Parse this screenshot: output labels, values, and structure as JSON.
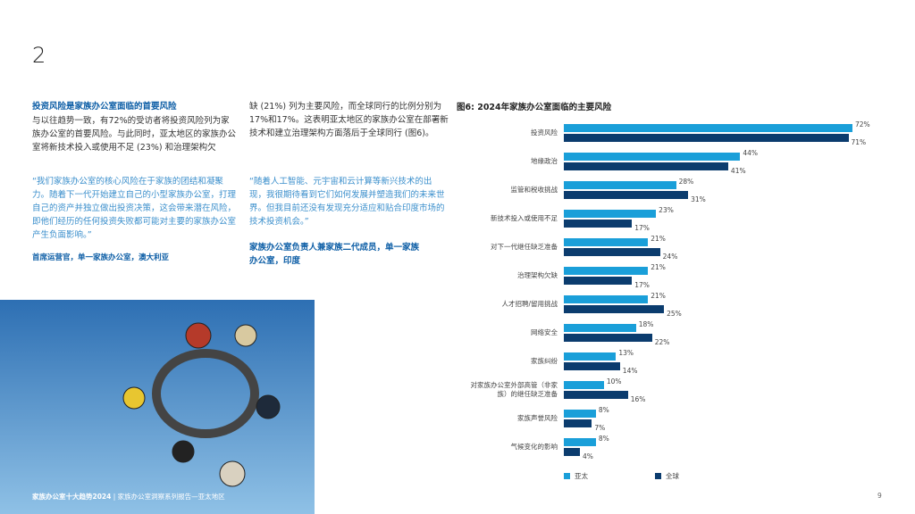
{
  "page_number": "2",
  "left": {
    "heading": "投资风险是家族办公室面临的首要风险",
    "paragraph": "与以往趋势一致，有72%的受访者将投资风险列为家族办公室的首要风险。与此同时，亚太地区的家族办公室将新技术投入或使用不足 (23%) 和治理架构欠",
    "quote": "“我们家族办公室的核心风险在于家族的团结和凝聚力。随着下一代开始建立自己的小型家族办公室，打理自己的资产并独立做出投资决策，这会带来潜在风险，即他们经历的任何投资失败都可能对主要的家族办公室产生负面影响。”",
    "attribution": "首席运营官，单一家族办公室，澳大利亚"
  },
  "middle": {
    "paragraph": "缺 (21%) 列为主要风险，而全球同行的比例分别为17%和17%。这表明亚太地区的家族办公室在部署新技术和建立治理架构方面落后于全球同行 (图6)。",
    "quote": "“随着人工智能、元宇宙和云计算等新兴技术的出现，我很期待看到它们如何发展并塑造我们的未来世界。但我目前还没有发现充分适应和贴合印度市场的技术投资机会。”",
    "attribution": "家族办公室负责人兼家族二代成员，单一家族办公室，印度"
  },
  "chart_data": {
    "type": "hbar",
    "title": "图6: 2024年家族办公室面临的主要风险",
    "categories": [
      "投资风险",
      "地缘政治",
      "监管和税收挑战",
      "新技术投入或使用不足",
      "对下一代继任缺乏准备",
      "治理架构欠缺",
      "人才招聘/留用挑战",
      "网络安全",
      "家族纠纷",
      "对家族办公室外部高管（非家族）的继任缺乏准备",
      "家族声誉风险",
      "气候变化的影响"
    ],
    "series": [
      {
        "name": "亚太",
        "color": "#1a9fd9",
        "values": [
          72,
          44,
          28,
          23,
          21,
          21,
          21,
          18,
          13,
          10,
          8,
          8
        ],
        "value_labels": [
          "72%",
          "44%",
          "28%",
          "23%",
          "21%",
          "21%",
          "21%",
          "18%",
          "13%",
          "10%",
          "8%",
          "8%"
        ]
      },
      {
        "name": "全球",
        "color": "#0b3c6e",
        "values": [
          71,
          41,
          31,
          17,
          24,
          17,
          25,
          22,
          14,
          16,
          7,
          4
        ],
        "value_labels": [
          "71%",
          "41%",
          "31%",
          "17%",
          "24%",
          "17%",
          "25%",
          "22%",
          "14%",
          "16%",
          "7%",
          "4%"
        ]
      }
    ]
  },
  "footer": {
    "title": "家族办公室十大趋势2024",
    "subtitle": "家族办公室洞察系列报告—亚太地区",
    "page": "9"
  }
}
